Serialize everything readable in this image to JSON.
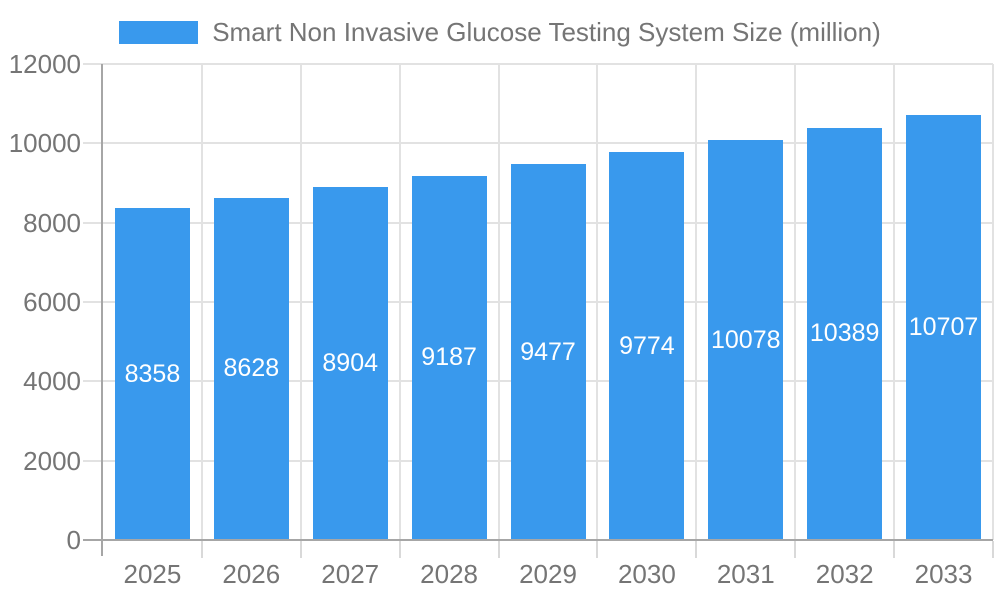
{
  "chart_data": {
    "type": "bar",
    "title": "Smart Non Invasive Glucose Testing System Size (million)",
    "categories": [
      "2025",
      "2026",
      "2027",
      "2028",
      "2029",
      "2030",
      "2031",
      "2032",
      "2033"
    ],
    "values": [
      8358,
      8628,
      8904,
      9187,
      9477,
      9774,
      10078,
      10389,
      10707
    ],
    "ylim": [
      0,
      12000
    ],
    "yticks": [
      0,
      2000,
      4000,
      6000,
      8000,
      10000,
      12000
    ],
    "grid": true,
    "legend_position": "top-center",
    "value_labels": "centered-inside-bars",
    "colors": {
      "bar": "#3999ED",
      "value_label": "#FFFFFF",
      "axis_text": "#757575",
      "axis_line": "#A6A6A6",
      "gridline": "#E2E2E2",
      "tick": "#D9D9D9",
      "background": "#FFFFFF"
    }
  }
}
